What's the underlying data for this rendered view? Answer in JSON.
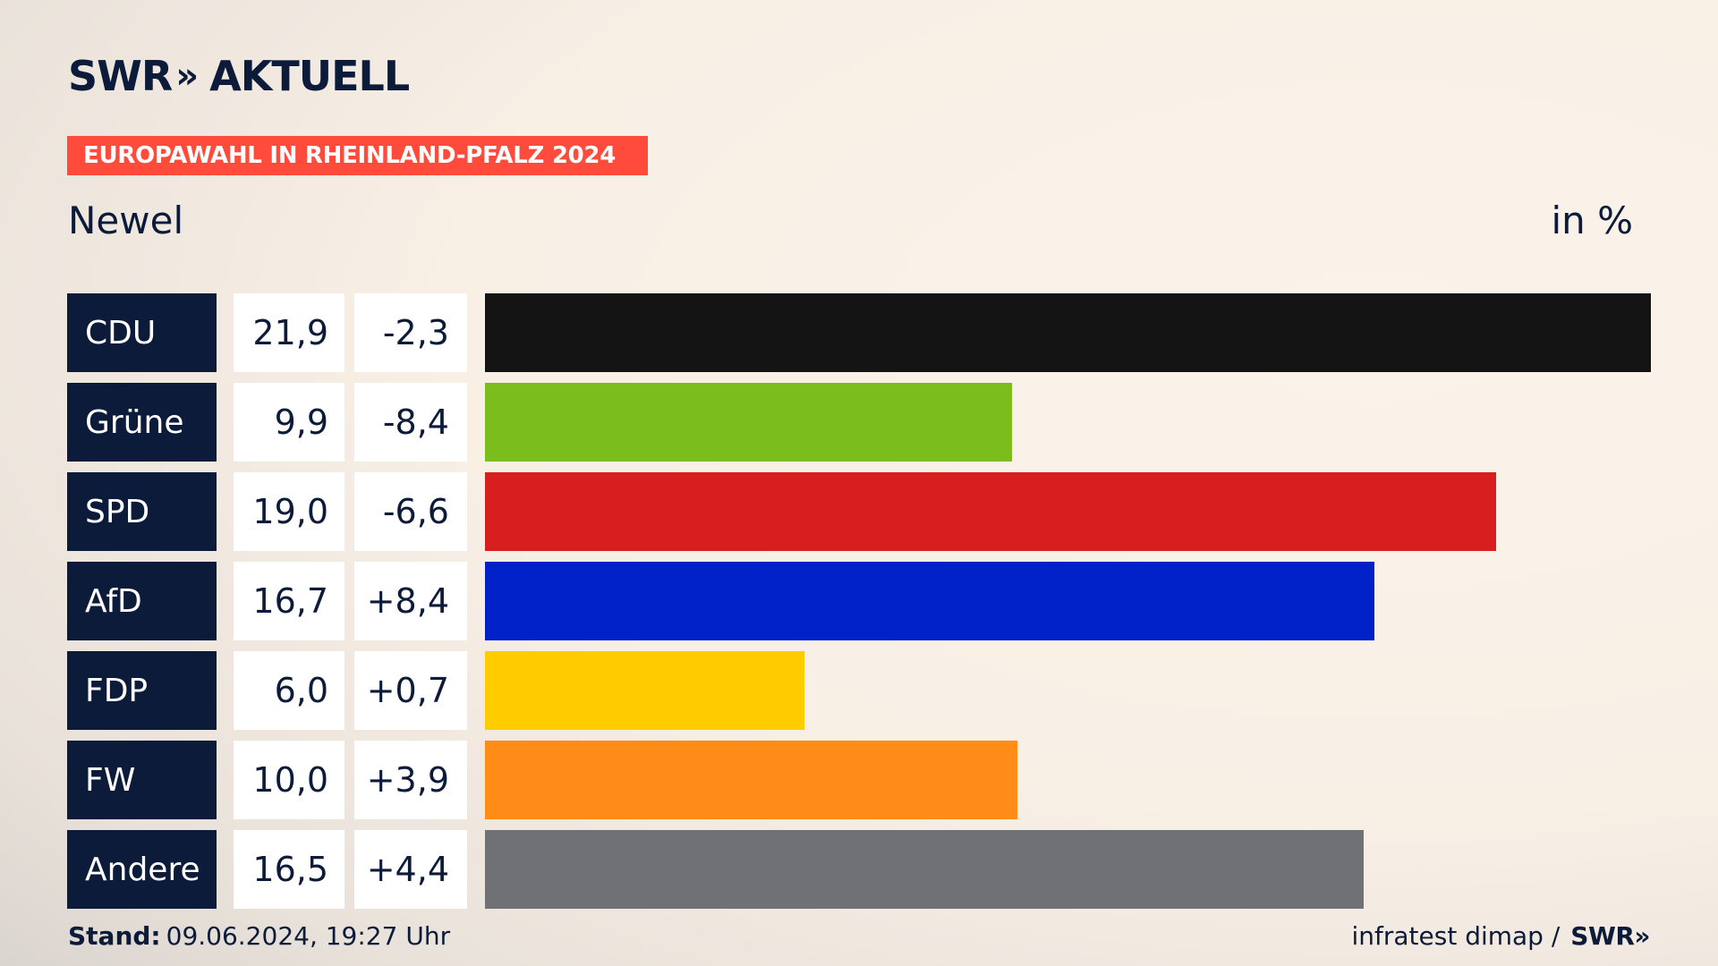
{
  "header": {
    "logo_text": "SWR",
    "logo_chevrons": "»",
    "logo_suffix": "AKTUELL",
    "banner": "EUROPAWAHL IN RHEINLAND-PFALZ 2024",
    "region": "Newel",
    "unit": "in %"
  },
  "chart_data": {
    "type": "bar",
    "orientation": "horizontal",
    "categories": [
      "CDU",
      "Grüne",
      "SPD",
      "AfD",
      "FDP",
      "FW",
      "Andere"
    ],
    "values": [
      21.9,
      9.9,
      19.0,
      16.7,
      6.0,
      10.0,
      16.5
    ],
    "value_labels": [
      "21,9",
      "9,9",
      "19,0",
      "16,7",
      "6,0",
      "10,0",
      "16,5"
    ],
    "diff_labels": [
      "-2,3",
      "-8,4",
      "-6,6",
      "+8,4",
      "+0,7",
      "+3,9",
      "+4,4"
    ],
    "colors": [
      "#141414",
      "#7abd1c",
      "#d71f1f",
      "#0021c8",
      "#ffcc00",
      "#ff8c17",
      "#707174"
    ],
    "xlim": [
      0,
      21.9
    ],
    "grid": false
  },
  "footer": {
    "stand_label": "Stand:",
    "stand_value": "09.06.2024, 19:27 Uhr",
    "source": "infratest dimap /",
    "source_logo": "SWR»"
  }
}
